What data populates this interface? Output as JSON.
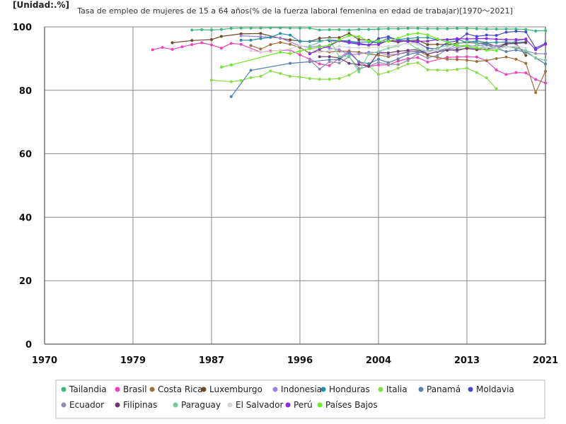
{
  "chart_data": {
    "type": "line",
    "unit_label": "[Unidad:.%]",
    "title": "Tasa de empleo de mujeres de 15 a 64 años(% de la fuerza laboral femenina en edad de trabajar)[1970～2021]",
    "xlim": [
      1970,
      2021
    ],
    "ylim": [
      0,
      100
    ],
    "x_ticks": [
      1970,
      1979,
      1987,
      1996,
      2004,
      2013,
      2021
    ],
    "y_ticks": [
      0,
      20,
      40,
      60,
      80,
      100
    ],
    "grid": true,
    "legend_position": "bottom",
    "series": [
      {
        "name": "Tailandia",
        "color": "#3cb878",
        "x": [
          1985,
          1986,
          1987,
          1988,
          1989,
          1990,
          1991,
          1992,
          1993,
          1994,
          1995,
          1996,
          1997,
          1998,
          1999,
          2000,
          2001,
          2002,
          2003,
          2004,
          2005,
          2006,
          2007,
          2008,
          2009,
          2010,
          2011,
          2012,
          2013,
          2014,
          2015,
          2016,
          2017,
          2018,
          2019,
          2020,
          2021
        ],
        "y": [
          99.0,
          99.1,
          99.0,
          99.2,
          99.5,
          99.6,
          99.6,
          99.6,
          99.7,
          99.7,
          99.6,
          99.6,
          99.6,
          99.0,
          99.1,
          99.1,
          99.0,
          99.2,
          99.2,
          99.3,
          99.4,
          99.4,
          99.5,
          99.5,
          99.4,
          99.4,
          99.4,
          99.5,
          99.5,
          99.4,
          99.3,
          99.3,
          99.3,
          99.3,
          99.2,
          98.7,
          98.8
        ]
      },
      {
        "name": "Brasil",
        "color": "#ee44bb",
        "x": [
          1981,
          1982,
          1983,
          1984,
          1985,
          1986,
          1987,
          1988,
          1989,
          1990,
          1992,
          1993,
          1995,
          1996,
          1997,
          1998,
          1999,
          2001,
          2002,
          2003,
          2004,
          2005,
          2006,
          2007,
          2008,
          2009,
          2011,
          2012,
          2013,
          2014,
          2015,
          2016,
          2017,
          2018,
          2019,
          2020,
          2021
        ],
        "y": [
          92.8,
          93.5,
          92.9,
          93.7,
          94.4,
          95.0,
          94.3,
          93.3,
          94.8,
          94.5,
          92.0,
          92.4,
          92.7,
          91.2,
          89.8,
          88.3,
          87.8,
          92.4,
          88.9,
          87.5,
          88.0,
          88.0,
          89.2,
          90.0,
          90.3,
          88.9,
          90.4,
          90.5,
          90.6,
          90.5,
          89.3,
          86.4,
          85.0,
          85.6,
          85.5,
          83.4,
          82.3
        ]
      },
      {
        "name": "Costa Rica",
        "color": "#a0703c",
        "x": [
          1991,
          1992,
          1993,
          1994,
          1995,
          1996,
          1997,
          1998,
          1999,
          2000,
          2001,
          2002,
          2003,
          2004,
          2005,
          2006,
          2007,
          2008,
          2009,
          2010,
          2011,
          2012,
          2013,
          2014,
          2015,
          2016,
          2017,
          2018,
          2019,
          2020,
          2021
        ],
        "y": [
          94.1,
          93.0,
          94.4,
          95.1,
          94.5,
          93.5,
          91.7,
          92.4,
          92.1,
          92.4,
          92.3,
          92.0,
          91.4,
          91.1,
          90.6,
          91.4,
          92.0,
          92.5,
          91.0,
          90.4,
          89.8,
          89.7,
          89.5,
          89.1,
          89.4,
          90.0,
          90.5,
          89.8,
          88.5,
          79.3,
          86.0
        ]
      },
      {
        "name": "Luxemburgo",
        "color": "#6a4a2a",
        "x": [
          1983,
          1985,
          1987,
          1988,
          1990,
          1992,
          1994,
          1995,
          1996,
          1997,
          1998,
          1999,
          2000,
          2001,
          2002,
          2003,
          2004,
          2005,
          2006,
          2007,
          2008,
          2009,
          2010,
          2011,
          2012,
          2013,
          2014,
          2015,
          2016,
          2017,
          2018,
          2019
        ],
        "y": [
          95.0,
          95.7,
          96.0,
          97.0,
          97.8,
          97.9,
          96.4,
          95.9,
          95.5,
          95.4,
          96.4,
          96.6,
          96.6,
          97.9,
          96.0,
          95.8,
          94.8,
          95.6,
          95.2,
          95.7,
          95.8,
          94.4,
          94.5,
          94.4,
          94.8,
          95.1,
          94.8,
          94.9,
          93.8,
          94.8,
          94.7,
          91.0
        ]
      },
      {
        "name": "Indonesia",
        "color": "#9a80d8",
        "x": [
          1990,
          1992,
          1994,
          1996,
          1997,
          1998,
          1999,
          2000,
          2001,
          2002,
          2003,
          2004,
          2005,
          2006,
          2007,
          2008,
          2009,
          2010,
          2011,
          2012,
          2013,
          2014,
          2015,
          2016,
          2017,
          2018,
          2019
        ],
        "y": [
          97.2,
          96.9,
          96.5,
          94.0,
          93.6,
          94.0,
          93.3,
          92.8,
          91.1,
          91.5,
          92.0,
          91.8,
          91.2,
          91.4,
          92.3,
          92.1,
          92.5,
          92.5,
          93.0,
          93.5,
          94.0,
          94.1,
          94.3,
          94.0,
          94.5,
          95.5,
          96.2
        ]
      },
      {
        "name": "Honduras",
        "color": "#2a8fa0",
        "x": [
          1990,
          1991,
          1992,
          1993,
          1994,
          1995,
          1996,
          1997,
          1998,
          1999,
          2001,
          2002,
          2003,
          2004,
          2005,
          2006,
          2007,
          2008,
          2009,
          2010,
          2011,
          2012,
          2013,
          2014,
          2015,
          2016,
          2017,
          2018,
          2019
        ],
        "y": [
          95.8,
          95.8,
          96.3,
          96.7,
          97.9,
          97.4,
          95.4,
          95.4,
          95.6,
          95.8,
          95.6,
          95.1,
          95.3,
          95.0,
          96.5,
          96.0,
          96.3,
          96.6,
          96.6,
          96.0,
          95.9,
          96.1,
          95.1,
          95.6,
          95.0,
          95.1,
          95.2,
          95.0,
          95.3
        ]
      },
      {
        "name": "Italia",
        "color": "#88dd44",
        "x": [
          1987,
          1989,
          1990,
          1991,
          1992,
          1993,
          1994,
          1995,
          1996,
          1997,
          1998,
          1999,
          2000,
          2001,
          2002,
          2003,
          2004,
          2005,
          2006,
          2007,
          2008,
          2009,
          2010,
          2011,
          2012,
          2013,
          2014,
          2015,
          2016
        ],
        "y": [
          83.2,
          82.7,
          83.1,
          84.0,
          84.4,
          86.1,
          85.3,
          84.4,
          84.2,
          83.7,
          83.5,
          83.5,
          83.7,
          84.8,
          86.6,
          87.8,
          85.0,
          85.8,
          87.0,
          88.3,
          88.7,
          86.5,
          86.4,
          86.3,
          86.6,
          87.0,
          85.6,
          83.9,
          80.5
        ]
      },
      {
        "name": "Panamá",
        "color": "#5580b0",
        "x": [
          1989,
          1991,
          1995,
          1997,
          1999,
          2000,
          2001,
          2002,
          2003,
          2004,
          2005,
          2006,
          2007,
          2008,
          2009,
          2010,
          2011,
          2012,
          2013,
          2014,
          2015,
          2016,
          2017,
          2018,
          2019,
          2020,
          2021
        ],
        "y": [
          78.0,
          86.3,
          88.5,
          89.0,
          89.6,
          89.7,
          91.9,
          89.0,
          88.4,
          89.8,
          88.7,
          89.9,
          91.3,
          91.9,
          92.0,
          92.6,
          93.0,
          94.5,
          95.6,
          95.0,
          94.4,
          93.2,
          92.2,
          92.7,
          92.0,
          90.2,
          88.3
        ]
      },
      {
        "name": "Moldavia",
        "color": "#4a4ac8",
        "x": [
          1999,
          2000,
          2001,
          2002,
          2003,
          2004,
          2005,
          2006,
          2007,
          2008,
          2009,
          2010,
          2011,
          2012,
          2013,
          2014,
          2015,
          2016,
          2017,
          2018,
          2019,
          2020,
          2021
        ],
        "y": [
          95.6,
          95.6,
          95.0,
          94.5,
          94.2,
          96.3,
          96.9,
          95.8,
          95.5,
          95.0,
          93.3,
          93.0,
          95.1,
          95.6,
          97.8,
          97.0,
          97.4,
          97.3,
          98.3,
          98.6,
          98.4,
          93.3,
          94.8
        ]
      },
      {
        "name": "Ecuador",
        "color": "#9090a8",
        "x": [
          1997,
          1998,
          1999,
          2000,
          2001,
          2002,
          2003,
          2004,
          2005,
          2006,
          2007,
          2008,
          2009,
          2010,
          2011,
          2012,
          2013,
          2014,
          2015,
          2016,
          2017,
          2018,
          2019,
          2020,
          2021
        ],
        "y": [
          89.5,
          86.7,
          89.0,
          88.6,
          90.6,
          86.9,
          87.5,
          88.8,
          88.2,
          88.1,
          89.4,
          91.5,
          90.2,
          91.0,
          93.0,
          92.3,
          93.5,
          93.1,
          93.5,
          93.6,
          93.9,
          93.3,
          92.4,
          91.6,
          91.5
        ]
      },
      {
        "name": "Filipinas",
        "color": "#6a3a6a",
        "x": [
          1998,
          1999,
          2000,
          2001,
          2002,
          2003,
          2004,
          2005,
          2006,
          2007,
          2008,
          2009,
          2010,
          2011,
          2012,
          2013,
          2014,
          2015,
          2016,
          2017,
          2018,
          2019
        ],
        "y": [
          90.6,
          90.6,
          90.2,
          88.5,
          88.1,
          87.6,
          92.0,
          91.8,
          92.3,
          92.6,
          92.9,
          91.4,
          92.2,
          92.6,
          92.8,
          93.2,
          92.8,
          93.0,
          93.2,
          94.6,
          94.8,
          95.0
        ]
      },
      {
        "name": "Paraguay",
        "color": "#77cc99",
        "x": [
          1997,
          1999,
          2000,
          2001,
          2002,
          2003,
          2004,
          2005,
          2006,
          2007,
          2008,
          2009,
          2010,
          2011,
          2012,
          2013,
          2014,
          2015,
          2016,
          2017,
          2018,
          2019,
          2020,
          2021
        ],
        "y": [
          94.0,
          96.2,
          90.6,
          90.8,
          85.8,
          91.4,
          92.2,
          93.3,
          94.0,
          95.0,
          93.0,
          92.3,
          93.4,
          94.1,
          94.5,
          95.5,
          94.6,
          93.4,
          93.0,
          93.7,
          93.7,
          92.5,
          90.1,
          89.5
        ]
      },
      {
        "name": "El Salvador",
        "color": "#d4d4d4",
        "x": [
          1991,
          1992,
          1994,
          1995,
          1996,
          1998,
          1999,
          2000,
          2001,
          2002,
          2003,
          2004,
          2005,
          2006,
          2007,
          2008,
          2009,
          2010,
          2011,
          2012,
          2013,
          2014,
          2015,
          2016,
          2017,
          2018,
          2019
        ],
        "y": [
          92.5,
          92.0,
          92.6,
          93.0,
          94.2,
          92.0,
          92.5,
          93.9,
          93.5,
          93.4,
          93.5,
          93.6,
          93.9,
          94.2,
          94.8,
          94.5,
          92.0,
          92.6,
          93.4,
          93.9,
          94.5,
          93.7,
          93.5,
          93.3,
          93.6,
          94.0,
          93.3
        ]
      },
      {
        "name": "Perú",
        "color": "#8a2be2",
        "x": [
          1997,
          1998,
          1999,
          2000,
          2001,
          2002,
          2003,
          2004,
          2005,
          2006,
          2007,
          2008,
          2009,
          2010,
          2011,
          2012,
          2013,
          2014,
          2015,
          2016,
          2017,
          2018,
          2019,
          2020,
          2021
        ],
        "y": [
          91.5,
          93.0,
          94.0,
          95.7,
          95.2,
          94.8,
          94.3,
          94.4,
          95.8,
          95.5,
          95.4,
          95.5,
          95.5,
          96.0,
          96.0,
          96.3,
          96.2,
          96.3,
          96.3,
          96.1,
          96.0,
          96.0,
          96.1,
          92.8,
          94.5
        ]
      },
      {
        "name": "Países Bajos",
        "color": "#66ee22",
        "x": [
          1988,
          1989,
          1994,
          1995,
          1996,
          1997,
          1998,
          1999,
          2000,
          2001,
          2002,
          2003,
          2004,
          2005,
          2006,
          2007,
          2008,
          2009,
          2010,
          2011,
          2012,
          2013,
          2014,
          2015,
          2016
        ],
        "y": [
          87.3,
          88.0,
          92.0,
          91.6,
          92.3,
          93.1,
          93.6,
          94.3,
          95.9,
          97.3,
          96.9,
          95.5,
          95.5,
          95.5,
          96.4,
          97.6,
          98.0,
          97.5,
          96.2,
          95.2,
          94.1,
          94.0,
          93.4,
          92.6,
          92.5
        ]
      }
    ]
  }
}
